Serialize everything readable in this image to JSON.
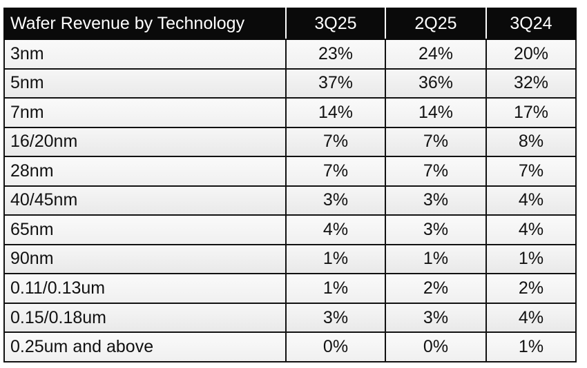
{
  "table": {
    "header": [
      "Wafer Revenue by Technology",
      "3Q25",
      "2Q25",
      "3Q24"
    ],
    "rows": [
      [
        "3nm",
        "23%",
        "24%",
        "20%"
      ],
      [
        "5nm",
        "37%",
        "36%",
        "32%"
      ],
      [
        "7nm",
        "14%",
        "14%",
        "17%"
      ],
      [
        "16/20nm",
        "7%",
        "7%",
        "8%"
      ],
      [
        "28nm",
        "7%",
        "7%",
        "7%"
      ],
      [
        "40/45nm",
        "3%",
        "3%",
        "4%"
      ],
      [
        "65nm",
        "4%",
        "3%",
        "4%"
      ],
      [
        "90nm",
        "1%",
        "1%",
        "1%"
      ],
      [
        "0.11/0.13um",
        "1%",
        "2%",
        "2%"
      ],
      [
        "0.15/0.18um",
        "3%",
        "3%",
        "4%"
      ],
      [
        "0.25um and above",
        "0%",
        "0%",
        "1%"
      ]
    ]
  }
}
